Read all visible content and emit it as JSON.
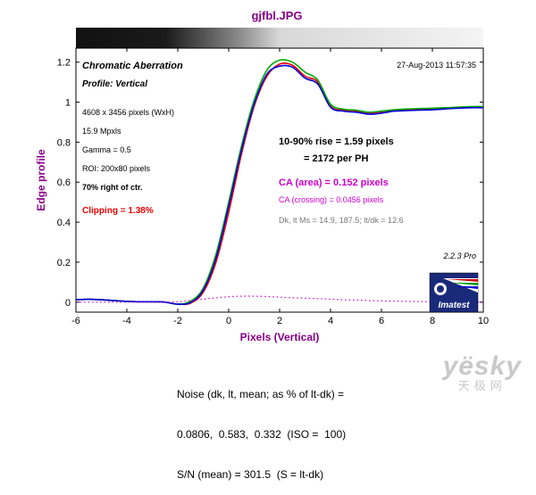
{
  "title": "gjfbl.JPG",
  "annotations": {
    "heading": "Chromatic Aberration",
    "profile": "Profile: Vertical",
    "timestamp": "27-Aug-2013 11:57:35",
    "dims": "4608 x 3456 pixels (WxH)",
    "mpxls": "15.9 Mpxls",
    "gamma": "Gamma = 0.5",
    "roi": "ROI: 200x80 pixels",
    "position": "70% right of ctr.",
    "clipping": "Clipping =  1.38%",
    "rise": "10-90% rise = 1.59 pixels",
    "per_ph": "= 2172 per PH",
    "ca_area": "CA (area) = 0.152 pixels",
    "ca_crossing": "CA (crossing) = 0.0456 pixels",
    "dk": "Dk, lt Ms = 14.9, 187.5;  lt/dk = 12.6",
    "version": "2.2.3  Pro",
    "logo_text": "Imatest"
  },
  "noise": {
    "line1": "Noise (dk, lt, mean; as % of lt-dk) =",
    "line2": "0.0806,  0.583,  0.332  (ISO =  100)",
    "line3": "S/N (mean) = 301.5  (S = lt-dk)"
  },
  "watermark": {
    "brand": "yësky",
    "chinese": "天极网"
  },
  "colors": {
    "red": "#ee0000",
    "green": "#00aa00",
    "blue": "#0000dd",
    "magenta": "#cc00cc",
    "ylabel": "#880088",
    "clipping": "#ee0000",
    "title": "#880088"
  },
  "chart_data": {
    "type": "line",
    "xlabel": "Pixels (Vertical)",
    "ylabel": "Edge profile",
    "xlim": [
      -6,
      10
    ],
    "ylim": [
      -0.05,
      1.27
    ],
    "xticks": [
      "-6",
      "-4",
      "-2",
      "0",
      "2",
      "4",
      "6",
      "8",
      "10"
    ],
    "yticks": [
      "0",
      "0.2",
      "0.4",
      "0.6",
      "0.8",
      "1",
      "1.2"
    ],
    "x": [
      -6,
      -5.5,
      -5,
      -4.5,
      -4,
      -3.5,
      -3,
      -2.5,
      -2,
      -1.5,
      -1,
      -0.5,
      0,
      0.5,
      1,
      1.5,
      2,
      2.5,
      3,
      3.5,
      4,
      4.5,
      5,
      5.5,
      6,
      6.5,
      7,
      7.5,
      8,
      8.5,
      9,
      9.5,
      10
    ],
    "series": [
      {
        "name": "Red",
        "color": "red",
        "values": [
          0.012,
          0.014,
          0.012,
          0.008,
          0.004,
          0.002,
          0.002,
          0.0,
          -0.01,
          -0.005,
          0.05,
          0.2,
          0.45,
          0.74,
          0.98,
          1.13,
          1.19,
          1.185,
          1.13,
          1.1,
          0.98,
          0.96,
          0.955,
          0.945,
          0.95,
          0.958,
          0.962,
          0.962,
          0.965,
          0.968,
          0.972,
          0.975,
          0.975
        ]
      },
      {
        "name": "Green",
        "color": "green",
        "values": [
          0.012,
          0.014,
          0.012,
          0.008,
          0.004,
          0.002,
          0.002,
          0.0,
          -0.01,
          0.005,
          0.07,
          0.24,
          0.5,
          0.78,
          1.01,
          1.16,
          1.21,
          1.2,
          1.15,
          1.11,
          0.99,
          0.965,
          0.96,
          0.95,
          0.955,
          0.962,
          0.966,
          0.968,
          0.97,
          0.972,
          0.975,
          0.978,
          0.978
        ]
      },
      {
        "name": "Blue",
        "color": "blue",
        "values": [
          0.012,
          0.014,
          0.012,
          0.008,
          0.004,
          0.002,
          0.002,
          0.0,
          -0.01,
          -0.002,
          0.06,
          0.22,
          0.48,
          0.76,
          0.99,
          1.14,
          1.18,
          1.175,
          1.12,
          1.09,
          0.975,
          0.955,
          0.95,
          0.94,
          0.945,
          0.955,
          0.958,
          0.96,
          0.962,
          0.966,
          0.97,
          0.972,
          0.972
        ]
      },
      {
        "name": "CA",
        "color": "magenta",
        "dotted": true,
        "values": [
          0.0,
          0.0,
          0.0,
          0.0,
          0.0,
          0.0,
          0.0,
          0.0,
          0.002,
          0.008,
          0.015,
          0.022,
          0.027,
          0.03,
          0.03,
          0.028,
          0.025,
          0.022,
          0.02,
          0.018,
          0.015,
          0.012,
          0.01,
          0.008,
          0.006,
          0.005,
          0.004,
          0.003,
          0.002,
          0.002,
          0.001,
          0.001,
          0.001
        ]
      }
    ],
    "grid": false,
    "legend": "none"
  }
}
